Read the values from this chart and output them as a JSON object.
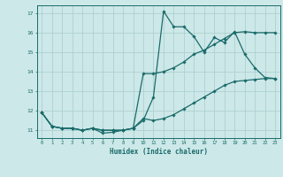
{
  "xlabel": "Humidex (Indice chaleur)",
  "xlim": [
    -0.5,
    23.5
  ],
  "ylim": [
    10.6,
    17.4
  ],
  "xticks": [
    0,
    1,
    2,
    3,
    4,
    5,
    6,
    7,
    8,
    9,
    10,
    11,
    12,
    13,
    14,
    15,
    16,
    17,
    18,
    19,
    20,
    21,
    22,
    23
  ],
  "yticks": [
    11,
    12,
    13,
    14,
    15,
    16,
    17
  ],
  "bg_color": "#cde8e8",
  "line_color": "#1a6b6b",
  "grid_color": "#a8cccc",
  "series1_x": [
    0,
    1,
    2,
    3,
    4,
    5,
    6,
    7,
    8,
    9,
    10,
    11,
    12,
    13,
    14,
    15,
    16,
    17,
    18,
    19,
    20,
    21,
    22,
    23
  ],
  "series1_y": [
    11.9,
    11.2,
    11.1,
    11.1,
    11.0,
    11.1,
    10.85,
    10.9,
    11.0,
    11.1,
    11.5,
    12.7,
    17.1,
    16.3,
    16.3,
    15.8,
    15.0,
    15.75,
    15.5,
    16.05,
    14.9,
    14.2,
    13.7,
    13.65
  ],
  "series2_x": [
    0,
    1,
    2,
    3,
    4,
    5,
    6,
    7,
    8,
    9,
    10,
    11,
    12,
    13,
    14,
    15,
    16,
    17,
    18,
    19,
    20,
    21,
    22,
    23
  ],
  "series2_y": [
    11.9,
    11.2,
    11.1,
    11.1,
    11.0,
    11.1,
    11.0,
    11.0,
    11.0,
    11.1,
    13.9,
    13.9,
    14.0,
    14.2,
    14.5,
    14.9,
    15.1,
    15.4,
    15.7,
    16.0,
    16.05,
    16.0,
    16.0,
    16.0
  ],
  "series3_x": [
    0,
    1,
    2,
    3,
    4,
    5,
    6,
    7,
    8,
    9,
    10,
    11,
    12,
    13,
    14,
    15,
    16,
    17,
    18,
    19,
    20,
    21,
    22,
    23
  ],
  "series3_y": [
    11.9,
    11.2,
    11.1,
    11.1,
    11.0,
    11.1,
    11.0,
    11.0,
    11.0,
    11.1,
    11.6,
    11.5,
    11.6,
    11.8,
    12.1,
    12.4,
    12.7,
    13.0,
    13.3,
    13.5,
    13.55,
    13.6,
    13.65,
    13.65
  ]
}
